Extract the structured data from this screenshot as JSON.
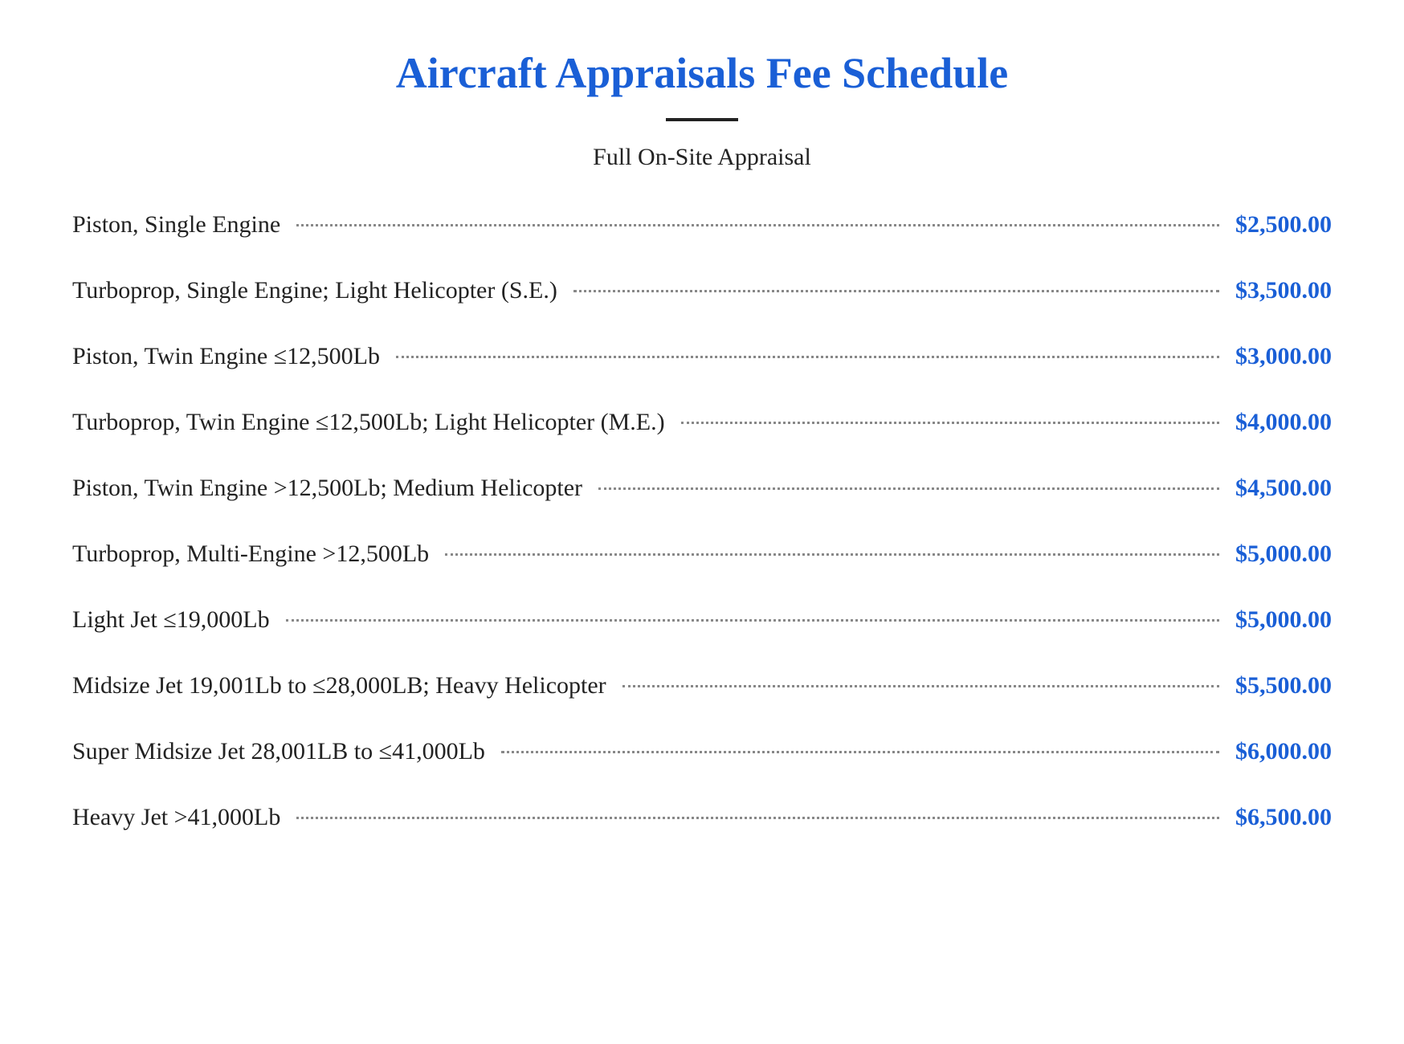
{
  "title": "Aircraft Appraisals Fee Schedule",
  "subtitle": "Full On-Site Appraisal",
  "colors": {
    "accent": "#1a5fd6",
    "text": "#222222",
    "background": "#ffffff",
    "dots": "#888888"
  },
  "typography": {
    "title_fontsize": 54,
    "subtitle_fontsize": 30,
    "row_fontsize": 30,
    "font_family": "Georgia, serif"
  },
  "fees": [
    {
      "label": "Piston, Single Engine",
      "price": "$2,500.00"
    },
    {
      "label": "Turboprop, Single Engine; Light Helicopter (S.E.)",
      "price": "$3,500.00"
    },
    {
      "label": "Piston, Twin Engine ≤12,500Lb",
      "price": "$3,000.00"
    },
    {
      "label": "Turboprop, Twin Engine ≤12,500Lb; Light Helicopter (M.E.)",
      "price": "$4,000.00"
    },
    {
      "label": "Piston, Twin Engine >12,500Lb; Medium Helicopter",
      "price": "$4,500.00"
    },
    {
      "label": "Turboprop, Multi-Engine >12,500Lb",
      "price": "$5,000.00"
    },
    {
      "label": "Light Jet ≤19,000Lb",
      "price": "$5,000.00"
    },
    {
      "label": "Midsize Jet 19,001Lb to ≤28,000LB; Heavy Helicopter",
      "price": "$5,500.00"
    },
    {
      "label": "Super Midsize Jet 28,001LB to ≤41,000Lb",
      "price": "$6,000.00"
    },
    {
      "label": "Heavy Jet >41,000Lb",
      "price": "$6,500.00"
    }
  ]
}
